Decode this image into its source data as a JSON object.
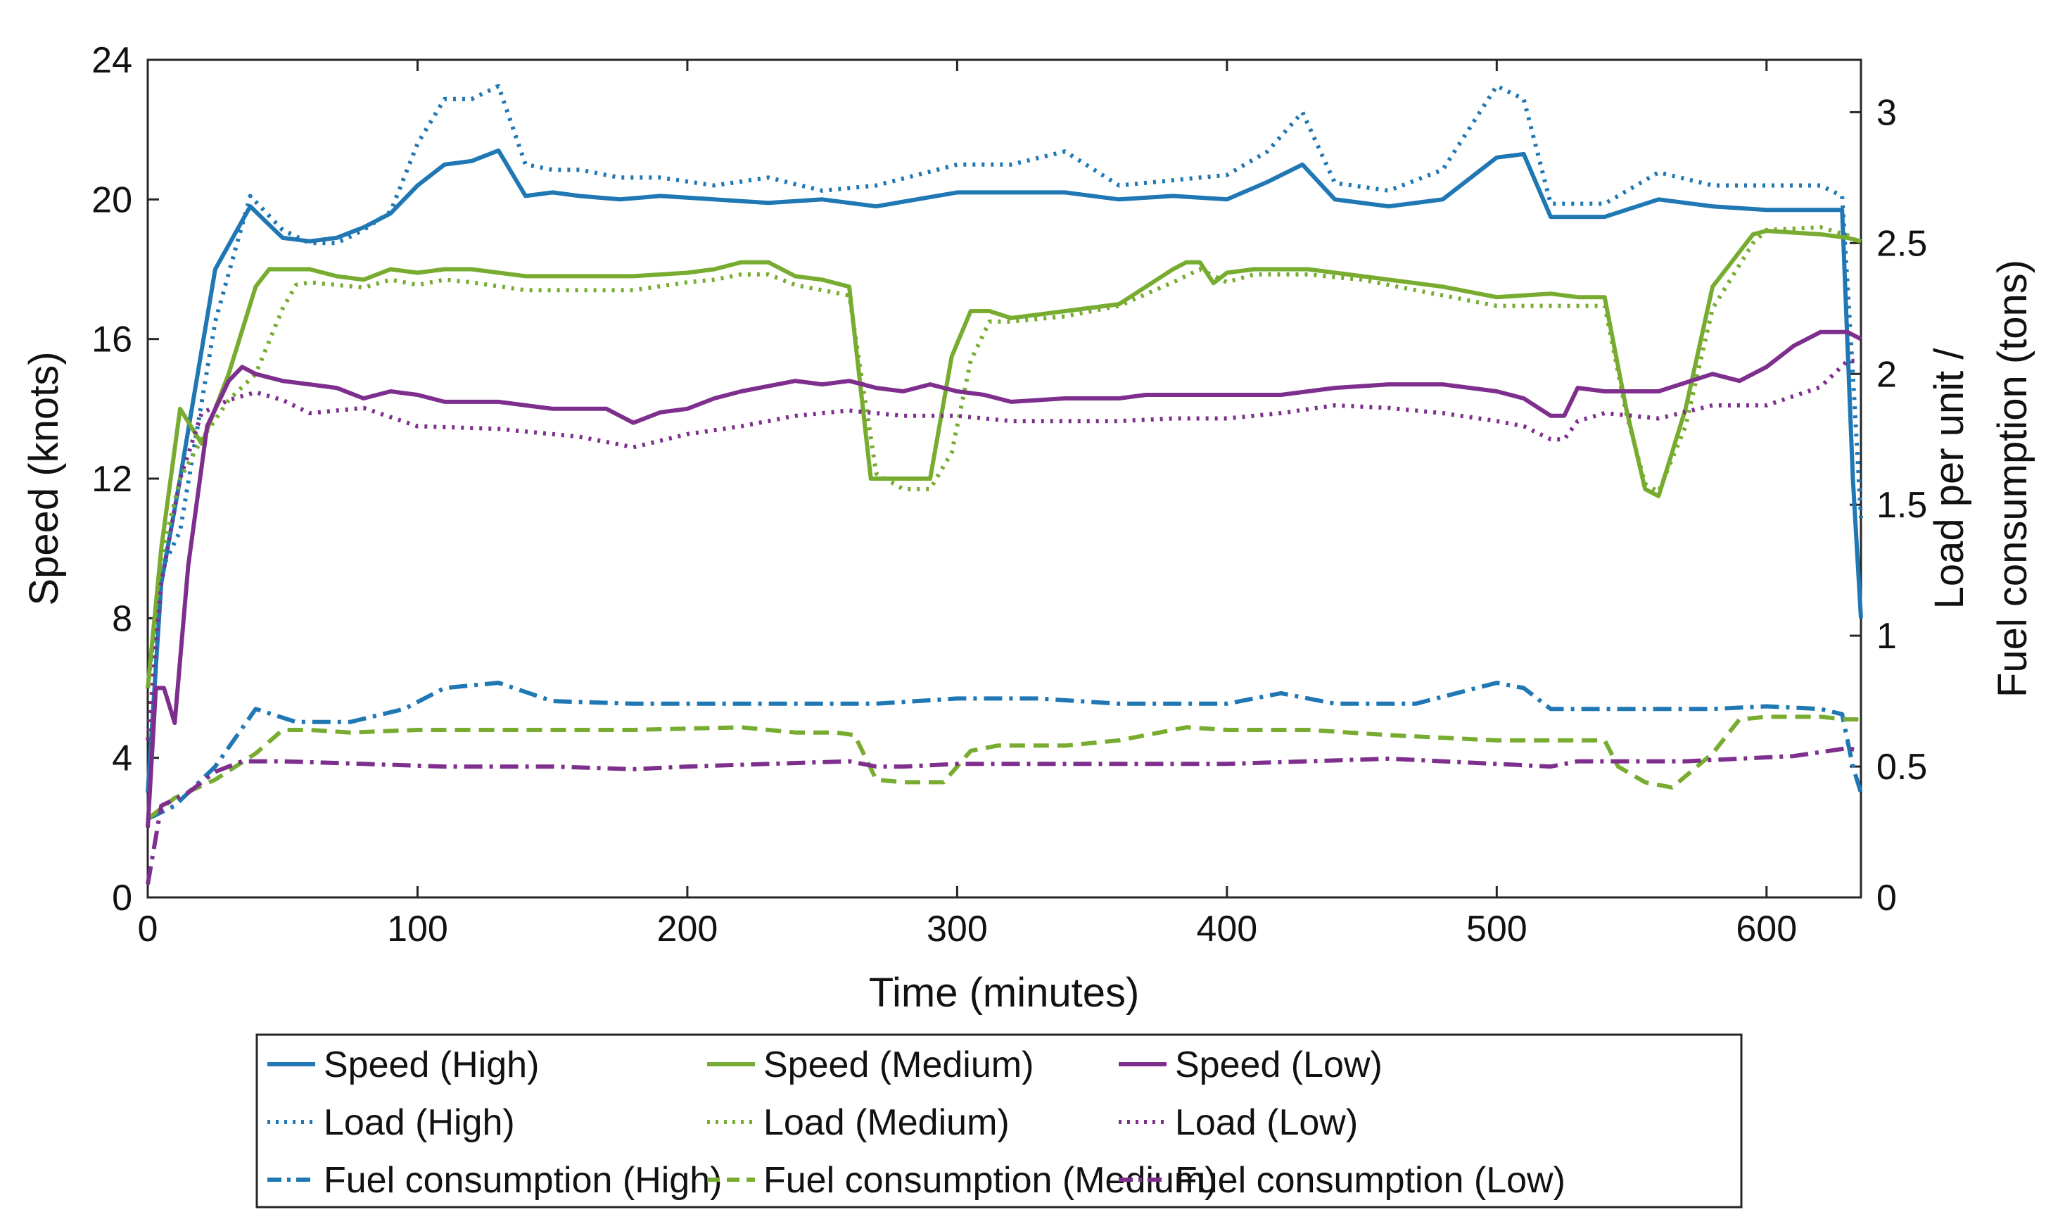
{
  "chart_data": {
    "type": "line",
    "xlabel": "Time (minutes)",
    "ylabel_left": "Speed (knots)",
    "ylabel_right_line1": "Load per unit /",
    "ylabel_right_line2": "Fuel consumption (tons)",
    "xlim": [
      0,
      635
    ],
    "ylim_left": [
      0,
      24
    ],
    "ylim_right": [
      0,
      3.2
    ],
    "x_ticks": [
      "0",
      "100",
      "200",
      "300",
      "400",
      "500",
      "600"
    ],
    "x_tick_values": [
      0,
      100,
      200,
      300,
      400,
      500,
      600
    ],
    "y_left_ticks": [
      "0",
      "4",
      "8",
      "12",
      "16",
      "20",
      "24"
    ],
    "y_left_tick_values": [
      0,
      4,
      8,
      12,
      16,
      20,
      24
    ],
    "y_right_ticks": [
      "0",
      "0.5",
      "1",
      "1.5",
      "2",
      "2.5",
      "3"
    ],
    "y_right_tick_values": [
      0,
      0.5,
      1,
      1.5,
      2,
      2.5,
      3
    ],
    "legend_position": "bottom-center",
    "colors": {
      "High": "#1f77b4",
      "Medium": "#77ac30",
      "Low": "#7e2f8e"
    },
    "series": [
      {
        "name": "Speed (High)",
        "axis": "left",
        "color": "#1f77b4",
        "style": "solid",
        "x": [
          0,
          5,
          12,
          25,
          38,
          50,
          60,
          70,
          80,
          90,
          100,
          110,
          120,
          130,
          140,
          150,
          160,
          175,
          190,
          210,
          230,
          250,
          270,
          300,
          320,
          340,
          360,
          380,
          400,
          415,
          428,
          440,
          460,
          480,
          500,
          510,
          520,
          540,
          560,
          580,
          600,
          620,
          628,
          632,
          635
        ],
        "y": [
          3,
          9,
          12,
          18,
          19.8,
          18.9,
          18.8,
          18.9,
          19.2,
          19.6,
          20.4,
          21,
          21.1,
          21.4,
          20.1,
          20.2,
          20.1,
          20,
          20.1,
          20,
          19.9,
          20,
          19.8,
          20.2,
          20.2,
          20.2,
          20,
          20.1,
          20,
          20.5,
          21,
          20,
          19.8,
          20,
          21.2,
          21.3,
          19.5,
          19.5,
          20,
          19.8,
          19.7,
          19.7,
          19.7,
          12,
          8
        ]
      },
      {
        "name": "Load (High)",
        "axis": "right",
        "color": "#1f77b4",
        "style": "dotted",
        "x": [
          0,
          5,
          12,
          25,
          38,
          50,
          60,
          70,
          80,
          90,
          100,
          110,
          120,
          130,
          140,
          150,
          160,
          175,
          190,
          210,
          230,
          250,
          270,
          300,
          320,
          340,
          360,
          380,
          400,
          415,
          428,
          440,
          460,
          480,
          500,
          510,
          520,
          540,
          560,
          580,
          600,
          620,
          628,
          632,
          635
        ],
        "y": [
          0.8,
          1.25,
          1.4,
          2.2,
          2.68,
          2.55,
          2.5,
          2.5,
          2.55,
          2.62,
          2.88,
          3.05,
          3.05,
          3.1,
          2.8,
          2.78,
          2.78,
          2.75,
          2.75,
          2.72,
          2.75,
          2.7,
          2.72,
          2.8,
          2.8,
          2.85,
          2.72,
          2.74,
          2.76,
          2.85,
          3.0,
          2.73,
          2.7,
          2.78,
          3.1,
          3.05,
          2.65,
          2.65,
          2.77,
          2.72,
          2.72,
          2.72,
          2.68,
          2.0,
          1.45
        ]
      },
      {
        "name": "Fuel consumption (High)",
        "axis": "right",
        "color": "#1f77b4",
        "style": "dashdot",
        "x": [
          0,
          10,
          25,
          40,
          55,
          75,
          95,
          110,
          130,
          150,
          180,
          210,
          240,
          270,
          300,
          330,
          360,
          400,
          420,
          440,
          470,
          500,
          510,
          520,
          540,
          560,
          580,
          600,
          620,
          628,
          632,
          635
        ],
        "y": [
          0.3,
          0.35,
          0.5,
          0.72,
          0.67,
          0.67,
          0.72,
          0.8,
          0.82,
          0.75,
          0.74,
          0.74,
          0.74,
          0.74,
          0.76,
          0.76,
          0.74,
          0.74,
          0.78,
          0.74,
          0.74,
          0.82,
          0.8,
          0.72,
          0.72,
          0.72,
          0.72,
          0.73,
          0.72,
          0.7,
          0.5,
          0.4
        ]
      },
      {
        "name": "Speed (Medium)",
        "axis": "left",
        "color": "#77ac30",
        "style": "solid",
        "x": [
          0,
          5,
          12,
          20,
          30,
          40,
          45,
          50,
          55,
          60,
          70,
          80,
          90,
          100,
          110,
          120,
          140,
          160,
          180,
          200,
          210,
          220,
          230,
          240,
          250,
          260,
          268,
          280,
          290,
          298,
          305,
          312,
          320,
          340,
          360,
          380,
          385,
          390,
          395,
          400,
          410,
          430,
          450,
          480,
          500,
          520,
          530,
          540,
          548,
          555,
          560,
          570,
          580,
          595,
          600,
          620,
          630,
          635
        ],
        "y": [
          6,
          10,
          14,
          13,
          15,
          17.5,
          18,
          18,
          18,
          18,
          17.8,
          17.7,
          18,
          17.9,
          18,
          18,
          17.8,
          17.8,
          17.8,
          17.9,
          18,
          18.2,
          18.2,
          17.8,
          17.7,
          17.5,
          12,
          12,
          12,
          15.5,
          16.8,
          16.8,
          16.6,
          16.8,
          17,
          18,
          18.2,
          18.2,
          17.6,
          17.9,
          18,
          18,
          17.8,
          17.5,
          17.2,
          17.3,
          17.2,
          17.2,
          14,
          11.7,
          11.5,
          14,
          17.5,
          19,
          19.1,
          19,
          18.9,
          18.8
        ]
      },
      {
        "name": "Load (Medium)",
        "axis": "right",
        "color": "#77ac30",
        "style": "dotted",
        "x": [
          0,
          5,
          12,
          20,
          30,
          40,
          50,
          55,
          60,
          70,
          80,
          90,
          100,
          110,
          120,
          140,
          160,
          180,
          200,
          210,
          220,
          230,
          240,
          250,
          260,
          270,
          280,
          290,
          298,
          305,
          312,
          320,
          340,
          360,
          380,
          390,
          400,
          410,
          430,
          450,
          480,
          500,
          520,
          530,
          540,
          548,
          555,
          560,
          570,
          580,
          595,
          600,
          620,
          630,
          635
        ],
        "y": [
          0.8,
          1.3,
          1.6,
          1.75,
          1.9,
          2.0,
          2.25,
          2.34,
          2.35,
          2.34,
          2.33,
          2.36,
          2.34,
          2.36,
          2.35,
          2.32,
          2.32,
          2.32,
          2.35,
          2.36,
          2.38,
          2.38,
          2.34,
          2.32,
          2.3,
          1.62,
          1.56,
          1.56,
          1.7,
          2.05,
          2.2,
          2.2,
          2.22,
          2.26,
          2.35,
          2.4,
          2.35,
          2.38,
          2.38,
          2.36,
          2.3,
          2.26,
          2.26,
          2.26,
          2.26,
          1.85,
          1.58,
          1.55,
          1.8,
          2.25,
          2.5,
          2.55,
          2.56,
          2.53,
          2.5
        ]
      },
      {
        "name": "Fuel consumption (Medium)",
        "axis": "right",
        "color": "#77ac30",
        "style": "dashed",
        "x": [
          0,
          10,
          25,
          40,
          50,
          60,
          75,
          100,
          140,
          180,
          220,
          240,
          255,
          262,
          270,
          280,
          290,
          295,
          305,
          315,
          340,
          360,
          385,
          400,
          430,
          460,
          500,
          530,
          540,
          545,
          555,
          565,
          580,
          590,
          600,
          620,
          630,
          635
        ],
        "y": [
          0.3,
          0.38,
          0.45,
          0.55,
          0.64,
          0.64,
          0.63,
          0.64,
          0.64,
          0.64,
          0.65,
          0.63,
          0.63,
          0.62,
          0.45,
          0.44,
          0.44,
          0.44,
          0.56,
          0.58,
          0.58,
          0.6,
          0.65,
          0.64,
          0.64,
          0.62,
          0.6,
          0.6,
          0.6,
          0.5,
          0.44,
          0.42,
          0.55,
          0.68,
          0.69,
          0.69,
          0.68,
          0.68
        ]
      },
      {
        "name": "Speed (Low)",
        "axis": "left",
        "color": "#7e2f8e",
        "style": "solid",
        "x": [
          0,
          3,
          6,
          10,
          15,
          22,
          30,
          35,
          40,
          50,
          60,
          70,
          80,
          90,
          100,
          110,
          130,
          150,
          170,
          180,
          190,
          200,
          210,
          220,
          240,
          250,
          260,
          270,
          280,
          290,
          300,
          310,
          320,
          340,
          360,
          370,
          380,
          400,
          420,
          440,
          460,
          480,
          500,
          510,
          520,
          525,
          530,
          540,
          560,
          580,
          590,
          600,
          610,
          620,
          630,
          635
        ],
        "y": [
          2,
          6,
          6,
          5,
          9.5,
          13.5,
          14.8,
          15.2,
          15,
          14.8,
          14.7,
          14.6,
          14.3,
          14.5,
          14.4,
          14.2,
          14.2,
          14,
          14,
          13.6,
          13.9,
          14,
          14.3,
          14.5,
          14.8,
          14.7,
          14.8,
          14.6,
          14.5,
          14.7,
          14.5,
          14.4,
          14.2,
          14.3,
          14.3,
          14.4,
          14.4,
          14.4,
          14.4,
          14.6,
          14.7,
          14.7,
          14.5,
          14.3,
          13.8,
          13.8,
          14.6,
          14.5,
          14.5,
          15,
          14.8,
          15.2,
          15.8,
          16.2,
          16.2,
          16
        ]
      },
      {
        "name": "Load (Low)",
        "axis": "right",
        "color": "#7e2f8e",
        "style": "dotted",
        "x": [
          0,
          5,
          12,
          20,
          30,
          40,
          50,
          60,
          80,
          100,
          130,
          160,
          180,
          200,
          220,
          240,
          260,
          280,
          300,
          320,
          340,
          360,
          380,
          400,
          420,
          440,
          460,
          480,
          500,
          510,
          520,
          525,
          530,
          540,
          560,
          580,
          600,
          620,
          630,
          635
        ],
        "y": [
          0.6,
          1.2,
          1.6,
          1.85,
          1.9,
          1.93,
          1.9,
          1.85,
          1.87,
          1.8,
          1.79,
          1.76,
          1.72,
          1.77,
          1.8,
          1.84,
          1.86,
          1.84,
          1.84,
          1.82,
          1.82,
          1.82,
          1.83,
          1.83,
          1.85,
          1.88,
          1.87,
          1.85,
          1.82,
          1.8,
          1.75,
          1.75,
          1.82,
          1.85,
          1.83,
          1.88,
          1.88,
          1.95,
          2.05,
          2.05
        ]
      },
      {
        "name": "Fuel consumption (Low)",
        "axis": "right",
        "color": "#7e2f8e",
        "style": "dashdot",
        "x": [
          0,
          5,
          15,
          25,
          35,
          50,
          80,
          110,
          150,
          180,
          200,
          230,
          260,
          270,
          280,
          300,
          350,
          400,
          430,
          460,
          500,
          520,
          530,
          550,
          570,
          590,
          610,
          630,
          635
        ],
        "y": [
          0.05,
          0.35,
          0.4,
          0.48,
          0.52,
          0.52,
          0.51,
          0.5,
          0.5,
          0.49,
          0.5,
          0.51,
          0.52,
          0.5,
          0.5,
          0.51,
          0.51,
          0.51,
          0.52,
          0.53,
          0.51,
          0.5,
          0.52,
          0.52,
          0.52,
          0.53,
          0.54,
          0.57,
          0.56
        ]
      }
    ]
  }
}
